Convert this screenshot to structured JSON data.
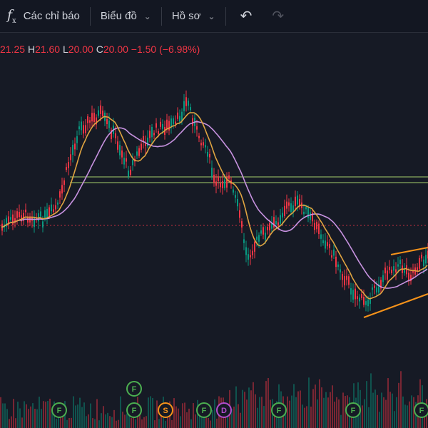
{
  "toolbar": {
    "indicators_label": "Các chỉ báo",
    "chart_type_label": "Biểu đồ",
    "profile_label": "Hồ sơ"
  },
  "legend": {
    "open_value": "21.25",
    "high_key": "H",
    "high_value": "21.60",
    "low_key": "L",
    "low_value": "20.00",
    "close_key": "C",
    "close_value": "20.00",
    "change": "−1.50 (−6.98%)"
  },
  "colors": {
    "up": "#089981",
    "down": "#f23645",
    "ma_fast": "#e0a441",
    "ma_slow": "#c792e0",
    "support": "#a5d06b",
    "trendline": "#f7931a",
    "background": "#161a25"
  },
  "markers": [
    {
      "label": "F",
      "color": "#4caf50"
    },
    {
      "label": "F",
      "color": "#4caf50"
    },
    {
      "label": "F",
      "color": "#4caf50"
    },
    {
      "label": "S",
      "color": "#f7931a"
    },
    {
      "label": "F",
      "color": "#4caf50"
    },
    {
      "label": "D",
      "color": "#b44ecf"
    },
    {
      "label": "F",
      "color": "#4caf50"
    },
    {
      "label": "F",
      "color": "#4caf50"
    },
    {
      "label": "F",
      "color": "#4caf50"
    }
  ]
}
